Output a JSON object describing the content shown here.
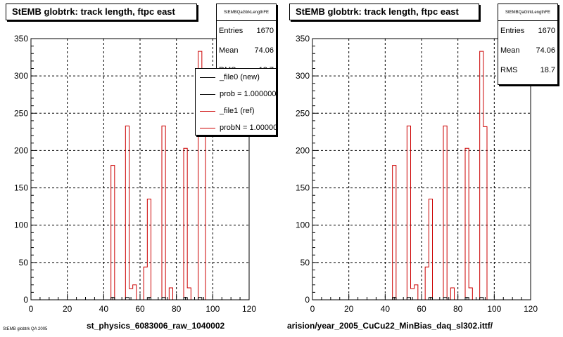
{
  "colors": {
    "new": "#000000",
    "ref": "#cc0000",
    "grid": "#000000"
  },
  "footer_text": "StEMB globtrk QA 2005",
  "pads": [
    {
      "title": "StEMB globtrk: track length, ftpc east",
      "stats": {
        "name": "StEMBQaGtrkLengthFE",
        "entries_label": "Entries",
        "entries": "1670",
        "mean_label": "Mean",
        "mean": "74.06",
        "rms_label": "RMS",
        "rms": "18.7"
      },
      "legend": [
        {
          "label": "_file0 (new)",
          "color": "#000000"
        },
        {
          "label": "prob = 1.000000",
          "color": "#000000"
        },
        {
          "label": "_file1 (ref)",
          "color": "#cc0000"
        },
        {
          "label": "probN = 1.000000",
          "color": "#cc0000"
        }
      ],
      "xlabel": "st_physics_6083006_raw_1040002"
    },
    {
      "title": "StEMB globtrk: track length, ftpc east",
      "stats": {
        "name": "StEMBQaGtrkLengthFE",
        "entries_label": "Entries",
        "entries": "1670",
        "mean_label": "Mean",
        "mean": "74.06",
        "rms_label": "RMS",
        "rms": "18.7"
      },
      "xlabel": "arision/year_2005_CuCu22_MinBias_daq_sl302.ittf/"
    }
  ],
  "chart_data": [
    {
      "type": "area",
      "title": "StEMB globtrk: track length, ftpc east",
      "xlabel": "st_physics_6083006_raw_1040002",
      "ylabel": "",
      "xlim": [
        0,
        120
      ],
      "ylim": [
        0,
        350
      ],
      "xticks": [
        0,
        20,
        40,
        60,
        80,
        100,
        120
      ],
      "yticks": [
        0,
        50,
        100,
        150,
        200,
        250,
        300,
        350
      ],
      "grid": true,
      "legend_position": "top-right",
      "bin_width": 2,
      "series": [
        {
          "name": "_file1 (ref)",
          "color": "#cc0000",
          "bins": [
            {
              "x": 42,
              "y": 0
            },
            {
              "x": 44,
              "y": 180
            },
            {
              "x": 46,
              "y": 0
            },
            {
              "x": 50,
              "y": 0
            },
            {
              "x": 52,
              "y": 233
            },
            {
              "x": 54,
              "y": 15
            },
            {
              "x": 56,
              "y": 20
            },
            {
              "x": 58,
              "y": 0
            },
            {
              "x": 62,
              "y": 44
            },
            {
              "x": 64,
              "y": 135
            },
            {
              "x": 66,
              "y": 0
            },
            {
              "x": 70,
              "y": 0
            },
            {
              "x": 72,
              "y": 233
            },
            {
              "x": 74,
              "y": 0
            },
            {
              "x": 76,
              "y": 16
            },
            {
              "x": 78,
              "y": 0
            },
            {
              "x": 84,
              "y": 203
            },
            {
              "x": 86,
              "y": 16
            },
            {
              "x": 88,
              "y": 0
            },
            {
              "x": 92,
              "y": 333
            },
            {
              "x": 94,
              "y": 232
            },
            {
              "x": 96,
              "y": 0
            }
          ]
        },
        {
          "name": "_file0 (new)",
          "color": "#000000",
          "bins": [
            {
              "x": 44,
              "y": 3
            },
            {
              "x": 52,
              "y": 3
            },
            {
              "x": 64,
              "y": 3
            },
            {
              "x": 72,
              "y": 3
            },
            {
              "x": 84,
              "y": 3
            },
            {
              "x": 92,
              "y": 3
            }
          ]
        }
      ]
    },
    {
      "type": "area",
      "title": "StEMB globtrk: track length, ftpc east",
      "xlabel": "arision/year_2005_CuCu22_MinBias_daq_sl302.ittf/",
      "ylabel": "",
      "xlim": [
        0,
        120
      ],
      "ylim": [
        0,
        350
      ],
      "xticks": [
        0,
        20,
        40,
        60,
        80,
        100,
        120
      ],
      "yticks": [
        0,
        50,
        100,
        150,
        200,
        250,
        300,
        350
      ],
      "grid": true,
      "bin_width": 2,
      "series": [
        {
          "name": "_file1 (ref)",
          "color": "#cc0000",
          "bins": [
            {
              "x": 42,
              "y": 0
            },
            {
              "x": 44,
              "y": 180
            },
            {
              "x": 46,
              "y": 0
            },
            {
              "x": 50,
              "y": 0
            },
            {
              "x": 52,
              "y": 233
            },
            {
              "x": 54,
              "y": 15
            },
            {
              "x": 56,
              "y": 20
            },
            {
              "x": 58,
              "y": 0
            },
            {
              "x": 62,
              "y": 44
            },
            {
              "x": 64,
              "y": 135
            },
            {
              "x": 66,
              "y": 0
            },
            {
              "x": 70,
              "y": 0
            },
            {
              "x": 72,
              "y": 233
            },
            {
              "x": 74,
              "y": 0
            },
            {
              "x": 76,
              "y": 16
            },
            {
              "x": 78,
              "y": 0
            },
            {
              "x": 84,
              "y": 203
            },
            {
              "x": 86,
              "y": 16
            },
            {
              "x": 88,
              "y": 0
            },
            {
              "x": 92,
              "y": 333
            },
            {
              "x": 94,
              "y": 232
            },
            {
              "x": 96,
              "y": 0
            }
          ]
        },
        {
          "name": "_file0 (new)",
          "color": "#000000",
          "bins": [
            {
              "x": 44,
              "y": 3
            },
            {
              "x": 52,
              "y": 3
            },
            {
              "x": 64,
              "y": 3
            },
            {
              "x": 72,
              "y": 3
            },
            {
              "x": 84,
              "y": 3
            },
            {
              "x": 92,
              "y": 3
            }
          ]
        }
      ]
    }
  ]
}
